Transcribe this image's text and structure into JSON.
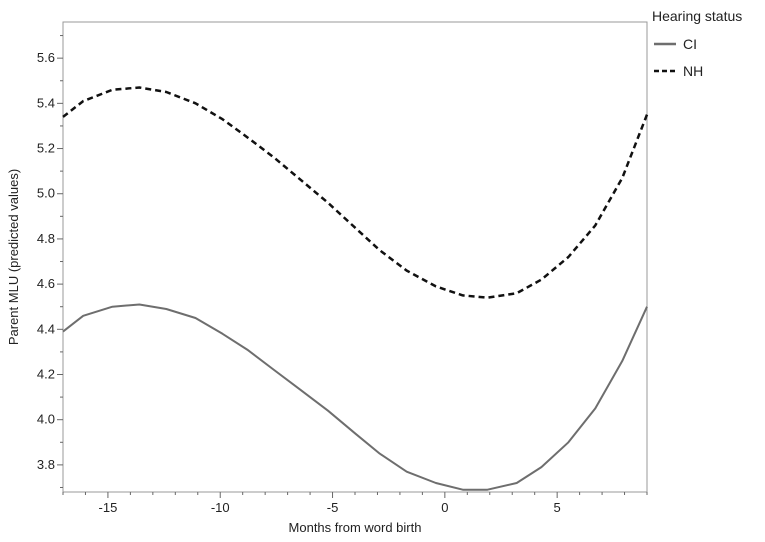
{
  "chart_data": {
    "type": "line",
    "title": "",
    "xlabel": "Months from word birth",
    "ylabel": "Parent MLU (predicted values)",
    "xlim": [
      -17,
      9
    ],
    "ylim": [
      3.68,
      5.76
    ],
    "xticks": [
      -15,
      -10,
      -5,
      0,
      5
    ],
    "xtick_labels": [
      "-15",
      "-10",
      "-5",
      "0",
      "5"
    ],
    "yticks": [
      3.8,
      4.0,
      4.2,
      4.4,
      4.6,
      4.8,
      5.0,
      5.2,
      5.4,
      5.6
    ],
    "ytick_labels": [
      "3.8",
      "4.0",
      "4.2",
      "4.4",
      "4.6",
      "4.8",
      "5.0",
      "5.2",
      "5.4",
      "5.6"
    ],
    "grid": false,
    "legend": {
      "title": "Hearing status",
      "placement": "top-right outside"
    },
    "series": [
      {
        "name": "CI",
        "style": "solid",
        "color": "#6e6e6e",
        "x": [
          -17,
          -16.1,
          -14.8,
          -13.6,
          -12.4,
          -11.1,
          -9.9,
          -8.8,
          -7.6,
          -6.4,
          -5.2,
          -4.0,
          -2.9,
          -1.7,
          -0.4,
          0.8,
          1.9,
          3.2,
          4.3,
          5.5,
          6.7,
          7.9,
          9.0
        ],
        "y": [
          4.39,
          4.46,
          4.5,
          4.51,
          4.49,
          4.45,
          4.38,
          4.31,
          4.22,
          4.13,
          4.04,
          3.94,
          3.85,
          3.77,
          3.72,
          3.69,
          3.69,
          3.72,
          3.79,
          3.9,
          4.05,
          4.26,
          4.5
        ]
      },
      {
        "name": "NH",
        "style": "dashed",
        "color": "#111111",
        "x": [
          -17,
          -16.1,
          -14.8,
          -13.6,
          -12.4,
          -11.1,
          -9.9,
          -8.8,
          -7.6,
          -6.4,
          -5.2,
          -4.0,
          -2.9,
          -1.7,
          -0.4,
          0.8,
          1.9,
          3.2,
          4.3,
          5.5,
          6.7,
          7.9,
          9.0
        ],
        "y": [
          5.34,
          5.41,
          5.46,
          5.47,
          5.45,
          5.4,
          5.33,
          5.25,
          5.16,
          5.06,
          4.96,
          4.85,
          4.75,
          4.66,
          4.59,
          4.55,
          4.54,
          4.56,
          4.62,
          4.72,
          4.86,
          5.07,
          5.35
        ]
      }
    ]
  }
}
